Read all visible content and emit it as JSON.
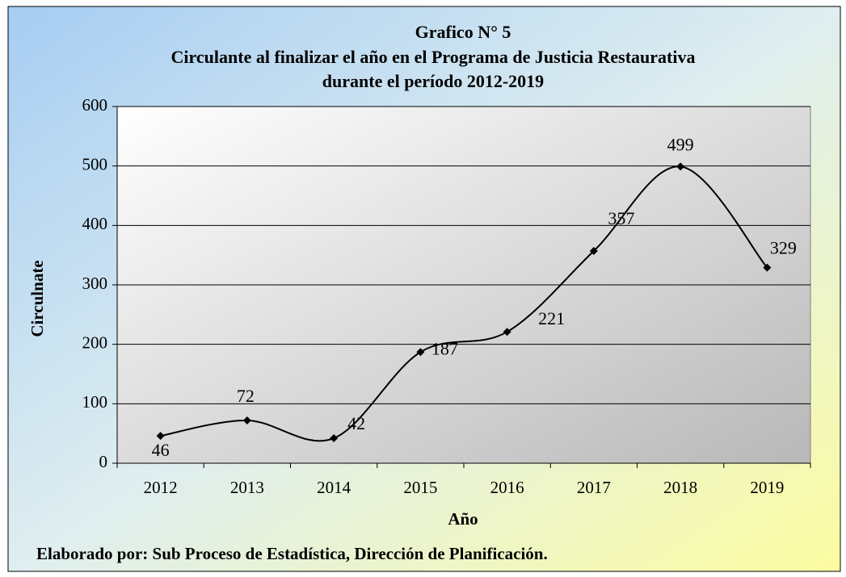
{
  "chart_data": {
    "type": "line",
    "title": [
      "Grafico N° 5",
      "Circulante al finalizar  el año en el Programa de Justicia Restaurativa",
      "durante  el período  2012-2019"
    ],
    "x_label": "Año",
    "y_label": "Circulnate",
    "footnote": "Elaborado por: Sub Proceso de Estadística, Dirección de Planificación.",
    "categories": [
      "2012",
      "2013",
      "2014",
      "2015",
      "2016",
      "2017",
      "2018",
      "2019"
    ],
    "series": [
      {
        "name": "Circulante",
        "color": "#000000",
        "values": [
          46,
          72,
          42,
          187,
          221,
          357,
          499,
          329
        ]
      }
    ],
    "ylim": [
      0,
      600
    ],
    "yticks": [
      0,
      100,
      200,
      300,
      400,
      500,
      600
    ],
    "grid": true,
    "smooth": true,
    "legend": false
  }
}
